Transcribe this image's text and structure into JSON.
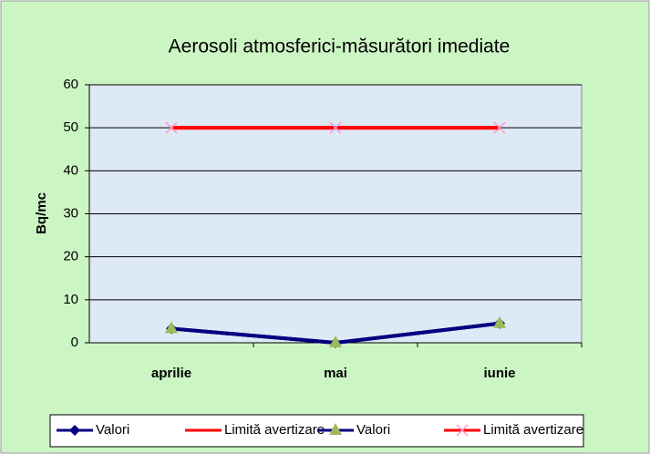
{
  "chart_data": {
    "type": "line",
    "title": "Aerosoli atmosferici-măsurători imediate",
    "y_label": "Bq/mc",
    "categories": [
      "aprilie",
      "mai",
      "iunie"
    ],
    "series": [
      {
        "name": "Valori",
        "color": "#000080",
        "marker": "diamond",
        "marker_color": "#000080",
        "values": [
          3.3,
          0,
          4.5
        ]
      },
      {
        "name": "Limită avertizare",
        "color": "#ff0000",
        "marker": "none",
        "marker_color": "#ff0000",
        "values": [
          50,
          50,
          50
        ]
      },
      {
        "name": "Valori",
        "color": "#000080",
        "marker": "triangle",
        "marker_color": "#9bbb59",
        "values": [
          3.3,
          0,
          4.5
        ]
      },
      {
        "name": "Limită avertizare",
        "color": "#ff0000",
        "marker": "x",
        "marker_color": "#ff99cc",
        "values": [
          50,
          50,
          50
        ]
      }
    ],
    "ylim": [
      0,
      60
    ],
    "yticks": [
      0,
      10,
      20,
      30,
      40,
      50,
      60
    ],
    "grid": true
  }
}
